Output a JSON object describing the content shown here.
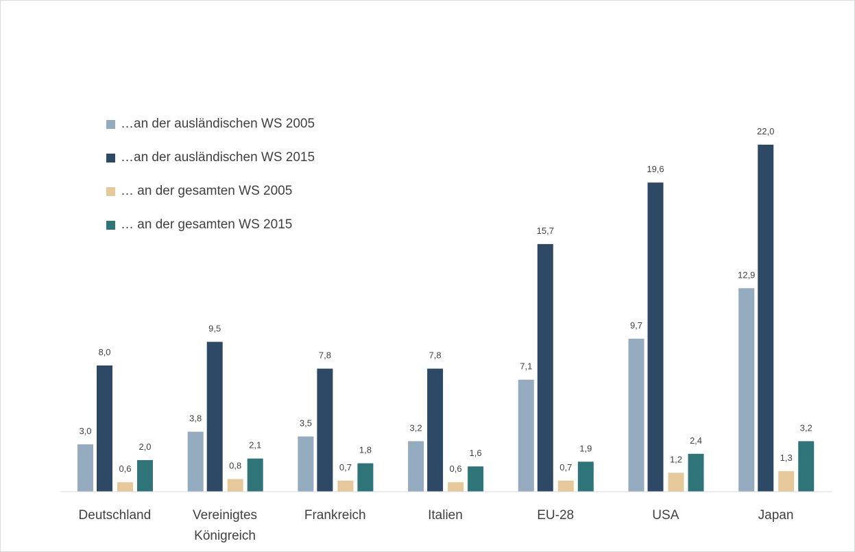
{
  "chart_data": {
    "type": "bar",
    "title": "",
    "xlabel": "",
    "ylabel": "",
    "ylim": [
      0,
      22
    ],
    "grid": false,
    "legend_position": "top-left",
    "categories": [
      [
        "Deutschland"
      ],
      [
        "Vereinigtes",
        "Königreich"
      ],
      [
        "Frankreich"
      ],
      [
        "Italien"
      ],
      [
        "EU-28"
      ],
      [
        "USA"
      ],
      [
        "Japan"
      ]
    ],
    "series": [
      {
        "name": "…an der ausländischen WS 2005",
        "color": "#95abbf",
        "values": [
          3.0,
          3.8,
          3.5,
          3.2,
          7.1,
          9.7,
          12.9
        ],
        "labels": [
          "3,0",
          "3,8",
          "3,5",
          "3,2",
          "7,1",
          "9,7",
          "12,9"
        ]
      },
      {
        "name": "…an der ausländischen WS 2015",
        "color": "#2e4965",
        "values": [
          8.0,
          9.5,
          7.8,
          7.8,
          15.7,
          19.6,
          22.0
        ],
        "labels": [
          "8,0",
          "9,5",
          "7,8",
          "7,8",
          "15,7",
          "19,6",
          "22,0"
        ]
      },
      {
        "name": "… an der gesamten WS 2005",
        "color": "#e6c99a",
        "values": [
          0.6,
          0.8,
          0.7,
          0.6,
          0.7,
          1.2,
          1.3
        ],
        "labels": [
          "0,6",
          "0,8",
          "0,7",
          "0,6",
          "0,7",
          "1,2",
          "1,3"
        ]
      },
      {
        "name": "… an der gesamten WS 2015",
        "color": "#2f7479",
        "values": [
          2.0,
          2.1,
          1.8,
          1.6,
          1.9,
          2.4,
          3.2
        ],
        "labels": [
          "2,0",
          "2,1",
          "1,8",
          "1,6",
          "1,9",
          "2,4",
          "3,2"
        ]
      }
    ]
  }
}
